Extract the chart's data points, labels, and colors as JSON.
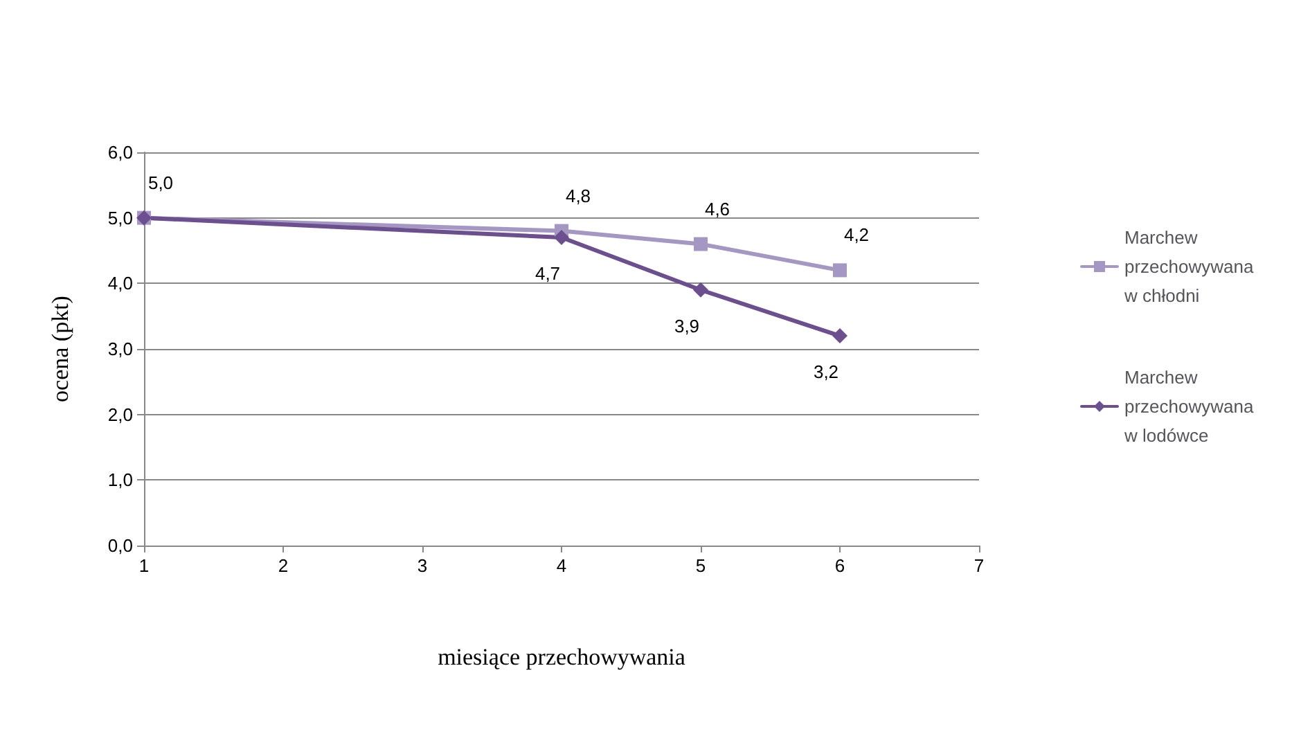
{
  "chart_data": {
    "type": "line",
    "xlabel": "miesiące przechowywania",
    "ylabel": "ocena (pkt)",
    "x": [
      1,
      4,
      5,
      6
    ],
    "series": [
      {
        "name": "Marchew przechowywana w chłodni",
        "color": "#a497c3",
        "marker": "square",
        "values": [
          5.0,
          4.8,
          4.6,
          4.2
        ],
        "value_labels": [
          "5,0",
          "4,8",
          "4,6",
          "4,2"
        ]
      },
      {
        "name": "Marchew przechowywana w lodówce",
        "color": "#6b4f8e",
        "marker": "diamond",
        "values": [
          5.0,
          4.7,
          3.9,
          3.2
        ],
        "value_labels": [
          null,
          "4,7",
          "3,9",
          "3,2"
        ]
      }
    ],
    "xlim": [
      1,
      7
    ],
    "xticks": [
      1,
      2,
      3,
      4,
      5,
      6,
      7
    ],
    "ylim": [
      0,
      6
    ],
    "yticks": [
      {
        "value": 0,
        "label": "0,0"
      },
      {
        "value": 1,
        "label": "1,0"
      },
      {
        "value": 2,
        "label": "2,0"
      },
      {
        "value": 3,
        "label": "3,0"
      },
      {
        "value": 4,
        "label": "4,0"
      },
      {
        "value": 5,
        "label": "5,0"
      },
      {
        "value": 6,
        "label": "6,0"
      }
    ],
    "grid": "y",
    "legend": "right",
    "line_style": "solid"
  }
}
